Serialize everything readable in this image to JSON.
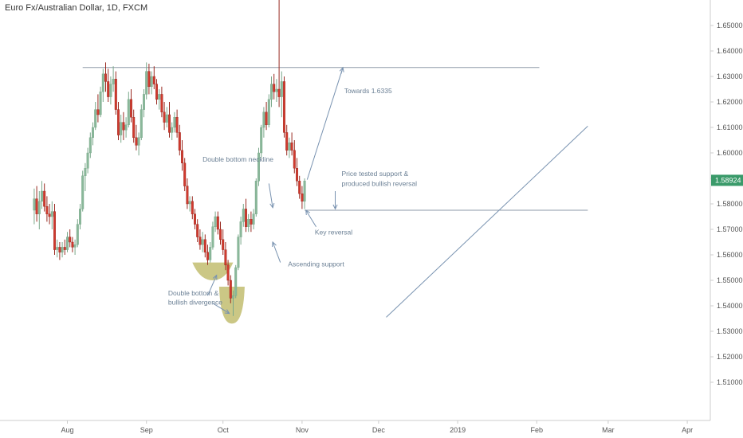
{
  "header": {
    "symbol_title": "Euro Fx/Australian Dollar, 1D, FXCM"
  },
  "chart_data": {
    "type": "candlestick",
    "title": "Euro Fx/Australian Dollar, 1D, FXCM",
    "ylim": [
      1.495,
      1.66
    ],
    "y_ticks": [
      "1.51000",
      "1.52000",
      "1.53000",
      "1.54000",
      "1.55000",
      "1.56000",
      "1.57000",
      "1.58000",
      "1.59000",
      "1.60000",
      "1.61000",
      "1.62000",
      "1.63000",
      "1.64000",
      "1.65000"
    ],
    "x_ticks": [
      "Aug",
      "Sep",
      "Oct",
      "Nov",
      "Dec",
      "2019",
      "Feb",
      "Mar",
      "Apr"
    ],
    "x_tick_days": [
      5,
      36,
      66,
      97,
      127,
      158,
      189,
      217,
      248
    ],
    "last_price": "1.58924",
    "last_price_value": 1.58924,
    "colors": {
      "up": "#8ab89a",
      "down": "#d03a2e",
      "line": "#8d9aa8",
      "annotation_line": "#7892b0",
      "ellipse": "#b9b45c",
      "price_tag": "#3a9a6a",
      "axis_text": "#555555"
    },
    "levels": [
      {
        "name": "resistance",
        "value": 1.6335,
        "day_start": 11,
        "day_end": 190
      },
      {
        "name": "double-bottom-neckline",
        "value": 1.5775,
        "day_start": 98,
        "day_end": 209
      }
    ],
    "trendline": {
      "name": "ascending-support",
      "points": [
        [
          130,
          1.5355
        ],
        [
          209,
          1.6105
        ]
      ]
    },
    "annotations": [
      {
        "text": "Towards 1.6335"
      },
      {
        "text": "Double bottom neckline"
      },
      {
        "text": "Price tested support &"
      },
      {
        "text": "produced bullish reversal"
      },
      {
        "text": "Key reversal"
      },
      {
        "text": "Ascending support"
      },
      {
        "text": "Double bottom &"
      },
      {
        "text": "bullish divergence"
      }
    ],
    "candles": [
      {
        "d": -8,
        "o": 1.5775,
        "h": 1.586,
        "l": 1.572,
        "c": 1.582
      },
      {
        "d": -7,
        "o": 1.582,
        "h": 1.587,
        "l": 1.573,
        "c": 1.576
      },
      {
        "d": -6,
        "o": 1.576,
        "h": 1.585,
        "l": 1.57,
        "c": 1.581
      },
      {
        "d": -5,
        "o": 1.581,
        "h": 1.589,
        "l": 1.578,
        "c": 1.585
      },
      {
        "d": -4,
        "o": 1.585,
        "h": 1.588,
        "l": 1.577,
        "c": 1.579
      },
      {
        "d": -3,
        "o": 1.579,
        "h": 1.583,
        "l": 1.573,
        "c": 1.576
      },
      {
        "d": -2,
        "o": 1.576,
        "h": 1.58,
        "l": 1.572,
        "c": 1.575
      },
      {
        "d": -1,
        "o": 1.575,
        "h": 1.581,
        "l": 1.57,
        "c": 1.577
      },
      {
        "d": 0,
        "o": 1.577,
        "h": 1.58,
        "l": 1.56,
        "c": 1.562
      },
      {
        "d": 1,
        "o": 1.562,
        "h": 1.566,
        "l": 1.559,
        "c": 1.563
      },
      {
        "d": 2,
        "o": 1.563,
        "h": 1.565,
        "l": 1.558,
        "c": 1.561
      },
      {
        "d": 3,
        "o": 1.561,
        "h": 1.565,
        "l": 1.559,
        "c": 1.563
      },
      {
        "d": 4,
        "o": 1.563,
        "h": 1.566,
        "l": 1.56,
        "c": 1.562
      },
      {
        "d": 5,
        "o": 1.562,
        "h": 1.569,
        "l": 1.561,
        "c": 1.567
      },
      {
        "d": 6,
        "o": 1.567,
        "h": 1.57,
        "l": 1.563,
        "c": 1.565
      },
      {
        "d": 7,
        "o": 1.565,
        "h": 1.567,
        "l": 1.561,
        "c": 1.563
      },
      {
        "d": 8,
        "o": 1.563,
        "h": 1.566,
        "l": 1.56,
        "c": 1.564
      },
      {
        "d": 9,
        "o": 1.564,
        "h": 1.574,
        "l": 1.563,
        "c": 1.572
      },
      {
        "d": 10,
        "o": 1.572,
        "h": 1.58,
        "l": 1.57,
        "c": 1.578
      },
      {
        "d": 11,
        "o": 1.578,
        "h": 1.593,
        "l": 1.577,
        "c": 1.591
      },
      {
        "d": 12,
        "o": 1.591,
        "h": 1.596,
        "l": 1.585,
        "c": 1.594
      },
      {
        "d": 13,
        "o": 1.594,
        "h": 1.602,
        "l": 1.592,
        "c": 1.6
      },
      {
        "d": 14,
        "o": 1.6,
        "h": 1.608,
        "l": 1.598,
        "c": 1.606
      },
      {
        "d": 15,
        "o": 1.606,
        "h": 1.612,
        "l": 1.603,
        "c": 1.61
      },
      {
        "d": 16,
        "o": 1.61,
        "h": 1.62,
        "l": 1.609,
        "c": 1.617
      },
      {
        "d": 17,
        "o": 1.617,
        "h": 1.623,
        "l": 1.612,
        "c": 1.615
      },
      {
        "d": 18,
        "o": 1.615,
        "h": 1.626,
        "l": 1.614,
        "c": 1.624
      },
      {
        "d": 19,
        "o": 1.624,
        "h": 1.633,
        "l": 1.62,
        "c": 1.631
      },
      {
        "d": 20,
        "o": 1.631,
        "h": 1.6355,
        "l": 1.624,
        "c": 1.628
      },
      {
        "d": 21,
        "o": 1.628,
        "h": 1.633,
        "l": 1.62,
        "c": 1.622
      },
      {
        "d": 22,
        "o": 1.622,
        "h": 1.63,
        "l": 1.619,
        "c": 1.627
      },
      {
        "d": 23,
        "o": 1.627,
        "h": 1.634,
        "l": 1.624,
        "c": 1.629
      },
      {
        "d": 24,
        "o": 1.629,
        "h": 1.632,
        "l": 1.615,
        "c": 1.617
      },
      {
        "d": 25,
        "o": 1.617,
        "h": 1.62,
        "l": 1.605,
        "c": 1.607
      },
      {
        "d": 26,
        "o": 1.607,
        "h": 1.615,
        "l": 1.604,
        "c": 1.612
      },
      {
        "d": 27,
        "o": 1.612,
        "h": 1.616,
        "l": 1.605,
        "c": 1.609
      },
      {
        "d": 28,
        "o": 1.609,
        "h": 1.614,
        "l": 1.606,
        "c": 1.611
      },
      {
        "d": 29,
        "o": 1.611,
        "h": 1.624,
        "l": 1.61,
        "c": 1.621
      },
      {
        "d": 30,
        "o": 1.621,
        "h": 1.625,
        "l": 1.612,
        "c": 1.614
      },
      {
        "d": 31,
        "o": 1.614,
        "h": 1.617,
        "l": 1.604,
        "c": 1.606
      },
      {
        "d": 32,
        "o": 1.606,
        "h": 1.611,
        "l": 1.601,
        "c": 1.603
      },
      {
        "d": 33,
        "o": 1.603,
        "h": 1.608,
        "l": 1.599,
        "c": 1.606
      },
      {
        "d": 34,
        "o": 1.606,
        "h": 1.619,
        "l": 1.605,
        "c": 1.617
      },
      {
        "d": 35,
        "o": 1.617,
        "h": 1.625,
        "l": 1.614,
        "c": 1.623
      },
      {
        "d": 36,
        "o": 1.623,
        "h": 1.6355,
        "l": 1.621,
        "c": 1.632
      },
      {
        "d": 37,
        "o": 1.632,
        "h": 1.635,
        "l": 1.623,
        "c": 1.626
      },
      {
        "d": 38,
        "o": 1.626,
        "h": 1.632,
        "l": 1.623,
        "c": 1.63
      },
      {
        "d": 39,
        "o": 1.63,
        "h": 1.634,
        "l": 1.625,
        "c": 1.627
      },
      {
        "d": 40,
        "o": 1.627,
        "h": 1.629,
        "l": 1.619,
        "c": 1.621
      },
      {
        "d": 41,
        "o": 1.621,
        "h": 1.625,
        "l": 1.617,
        "c": 1.623
      },
      {
        "d": 42,
        "o": 1.623,
        "h": 1.626,
        "l": 1.614,
        "c": 1.616
      },
      {
        "d": 43,
        "o": 1.616,
        "h": 1.62,
        "l": 1.609,
        "c": 1.612
      },
      {
        "d": 44,
        "o": 1.612,
        "h": 1.618,
        "l": 1.61,
        "c": 1.615
      },
      {
        "d": 45,
        "o": 1.615,
        "h": 1.62,
        "l": 1.606,
        "c": 1.608
      },
      {
        "d": 46,
        "o": 1.608,
        "h": 1.612,
        "l": 1.605,
        "c": 1.61
      },
      {
        "d": 47,
        "o": 1.61,
        "h": 1.616,
        "l": 1.608,
        "c": 1.614
      },
      {
        "d": 48,
        "o": 1.614,
        "h": 1.617,
        "l": 1.606,
        "c": 1.608
      },
      {
        "d": 49,
        "o": 1.608,
        "h": 1.611,
        "l": 1.599,
        "c": 1.601
      },
      {
        "d": 50,
        "o": 1.601,
        "h": 1.605,
        "l": 1.593,
        "c": 1.596
      },
      {
        "d": 51,
        "o": 1.596,
        "h": 1.598,
        "l": 1.585,
        "c": 1.587
      },
      {
        "d": 52,
        "o": 1.587,
        "h": 1.59,
        "l": 1.578,
        "c": 1.58
      },
      {
        "d": 53,
        "o": 1.58,
        "h": 1.583,
        "l": 1.577,
        "c": 1.581
      },
      {
        "d": 54,
        "o": 1.581,
        "h": 1.583,
        "l": 1.574,
        "c": 1.576
      },
      {
        "d": 55,
        "o": 1.576,
        "h": 1.578,
        "l": 1.57,
        "c": 1.572
      },
      {
        "d": 56,
        "o": 1.572,
        "h": 1.574,
        "l": 1.565,
        "c": 1.567
      },
      {
        "d": 57,
        "o": 1.567,
        "h": 1.57,
        "l": 1.562,
        "c": 1.564
      },
      {
        "d": 58,
        "o": 1.564,
        "h": 1.569,
        "l": 1.561,
        "c": 1.566
      },
      {
        "d": 59,
        "o": 1.566,
        "h": 1.568,
        "l": 1.559,
        "c": 1.561
      },
      {
        "d": 60,
        "o": 1.561,
        "h": 1.564,
        "l": 1.556,
        "c": 1.558
      },
      {
        "d": 61,
        "o": 1.558,
        "h": 1.565,
        "l": 1.557,
        "c": 1.563
      },
      {
        "d": 62,
        "o": 1.563,
        "h": 1.573,
        "l": 1.562,
        "c": 1.571
      },
      {
        "d": 63,
        "o": 1.571,
        "h": 1.577,
        "l": 1.569,
        "c": 1.575
      },
      {
        "d": 64,
        "o": 1.575,
        "h": 1.577,
        "l": 1.568,
        "c": 1.57
      },
      {
        "d": 65,
        "o": 1.57,
        "h": 1.573,
        "l": 1.564,
        "c": 1.566
      },
      {
        "d": 66,
        "o": 1.566,
        "h": 1.57,
        "l": 1.56,
        "c": 1.562
      },
      {
        "d": 67,
        "o": 1.562,
        "h": 1.565,
        "l": 1.554,
        "c": 1.556
      },
      {
        "d": 68,
        "o": 1.556,
        "h": 1.558,
        "l": 1.548,
        "c": 1.55
      },
      {
        "d": 69,
        "o": 1.55,
        "h": 1.552,
        "l": 1.541,
        "c": 1.543
      },
      {
        "d": 70,
        "o": 1.543,
        "h": 1.546,
        "l": 1.536,
        "c": 1.544
      },
      {
        "d": 71,
        "o": 1.544,
        "h": 1.556,
        "l": 1.543,
        "c": 1.555
      },
      {
        "d": 72,
        "o": 1.555,
        "h": 1.568,
        "l": 1.554,
        "c": 1.567
      },
      {
        "d": 73,
        "o": 1.567,
        "h": 1.575,
        "l": 1.564,
        "c": 1.573
      },
      {
        "d": 74,
        "o": 1.573,
        "h": 1.58,
        "l": 1.571,
        "c": 1.578
      },
      {
        "d": 75,
        "o": 1.578,
        "h": 1.582,
        "l": 1.569,
        "c": 1.571
      },
      {
        "d": 76,
        "o": 1.571,
        "h": 1.576,
        "l": 1.569,
        "c": 1.574
      },
      {
        "d": 77,
        "o": 1.574,
        "h": 1.577,
        "l": 1.569,
        "c": 1.572
      },
      {
        "d": 78,
        "o": 1.572,
        "h": 1.578,
        "l": 1.57,
        "c": 1.576
      },
      {
        "d": 79,
        "o": 1.576,
        "h": 1.59,
        "l": 1.575,
        "c": 1.589
      },
      {
        "d": 80,
        "o": 1.589,
        "h": 1.602,
        "l": 1.587,
        "c": 1.6
      },
      {
        "d": 81,
        "o": 1.6,
        "h": 1.611,
        "l": 1.598,
        "c": 1.61
      },
      {
        "d": 82,
        "o": 1.61,
        "h": 1.618,
        "l": 1.606,
        "c": 1.616
      },
      {
        "d": 83,
        "o": 1.616,
        "h": 1.62,
        "l": 1.609,
        "c": 1.611
      },
      {
        "d": 84,
        "o": 1.611,
        "h": 1.623,
        "l": 1.61,
        "c": 1.621
      },
      {
        "d": 85,
        "o": 1.621,
        "h": 1.63,
        "l": 1.618,
        "c": 1.627
      },
      {
        "d": 86,
        "o": 1.627,
        "h": 1.631,
        "l": 1.621,
        "c": 1.624
      },
      {
        "d": 87,
        "o": 1.624,
        "h": 1.629,
        "l": 1.62,
        "c": 1.625
      },
      {
        "d": 88,
        "o": 1.625,
        "h": 1.6655,
        "l": 1.618,
        "c": 1.622
      },
      {
        "d": 89,
        "o": 1.622,
        "h": 1.632,
        "l": 1.614,
        "c": 1.628
      },
      {
        "d": 90,
        "o": 1.628,
        "h": 1.63,
        "l": 1.606,
        "c": 1.608
      },
      {
        "d": 91,
        "o": 1.608,
        "h": 1.611,
        "l": 1.599,
        "c": 1.601
      },
      {
        "d": 92,
        "o": 1.601,
        "h": 1.606,
        "l": 1.598,
        "c": 1.604
      },
      {
        "d": 93,
        "o": 1.604,
        "h": 1.608,
        "l": 1.599,
        "c": 1.601
      },
      {
        "d": 94,
        "o": 1.601,
        "h": 1.605,
        "l": 1.592,
        "c": 1.594
      },
      {
        "d": 95,
        "o": 1.594,
        "h": 1.598,
        "l": 1.587,
        "c": 1.589
      },
      {
        "d": 96,
        "o": 1.589,
        "h": 1.591,
        "l": 1.582,
        "c": 1.584
      },
      {
        "d": 97,
        "o": 1.584,
        "h": 1.587,
        "l": 1.578,
        "c": 1.581
      },
      {
        "d": 98,
        "o": 1.581,
        "h": 1.59,
        "l": 1.578,
        "c": 1.589
      }
    ]
  }
}
